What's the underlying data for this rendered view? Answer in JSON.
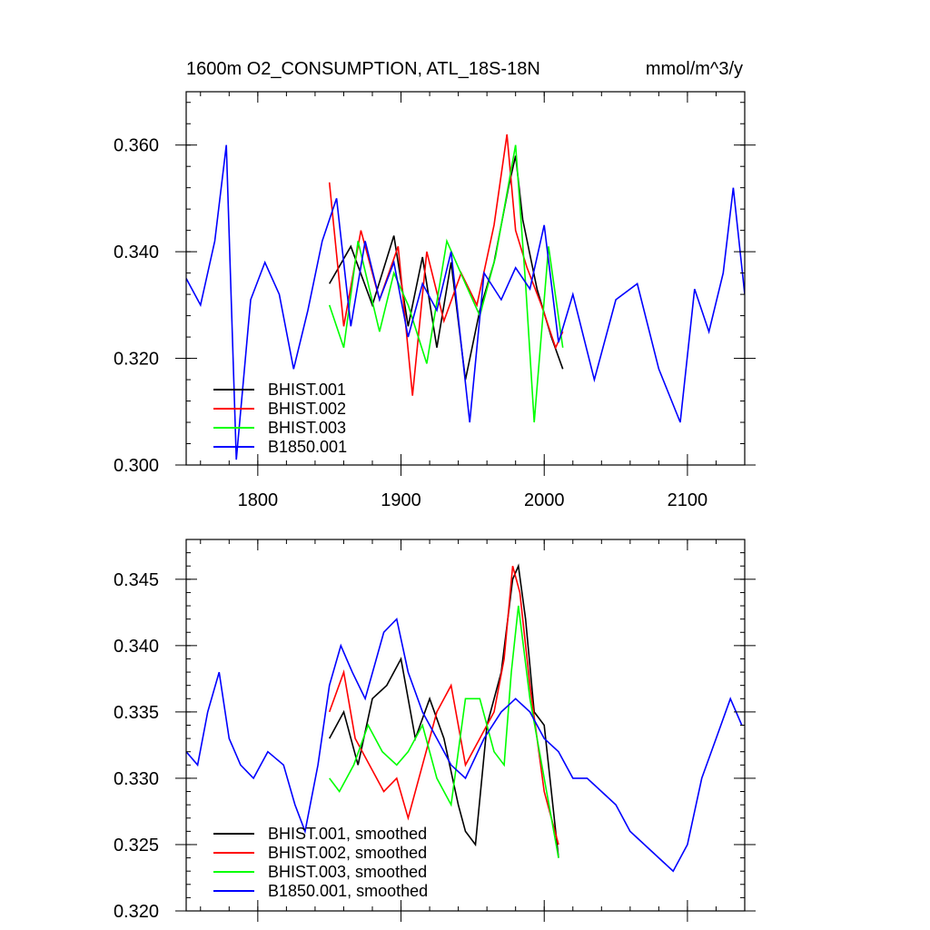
{
  "chart_data": [
    {
      "type": "line",
      "title": "1600m O2_CONSUMPTION, ATL_18S-18N",
      "units": "mmol/m^3/y",
      "xlim": [
        1750,
        2140
      ],
      "ylim": [
        0.3,
        0.37
      ],
      "x_ticks": [
        1800,
        1900,
        2000,
        2100
      ],
      "x_tick_labels": [
        "1800",
        "1900",
        "2000",
        "2100"
      ],
      "y_ticks": [
        0.3,
        0.32,
        0.34,
        0.36
      ],
      "y_tick_labels": [
        "0.300",
        "0.320",
        "0.340",
        "0.360"
      ],
      "legend_position": "bottom-left",
      "series": [
        {
          "name": "BHIST.001",
          "color": "#000000",
          "x": [
            1850,
            1865,
            1880,
            1895,
            1905,
            1915,
            1925,
            1935,
            1945,
            1955,
            1965,
            1975,
            1980,
            1985,
            1995,
            2005,
            2013
          ],
          "y": [
            0.334,
            0.341,
            0.33,
            0.343,
            0.326,
            0.339,
            0.322,
            0.338,
            0.316,
            0.329,
            0.338,
            0.352,
            0.358,
            0.346,
            0.333,
            0.324,
            0.318
          ]
        },
        {
          "name": "BHIST.002",
          "color": "#ff0000",
          "x": [
            1850,
            1860,
            1872,
            1885,
            1898,
            1908,
            1918,
            1930,
            1942,
            1953,
            1965,
            1974,
            1980,
            1988,
            1998,
            2008,
            2013
          ],
          "y": [
            0.353,
            0.326,
            0.344,
            0.331,
            0.341,
            0.313,
            0.34,
            0.327,
            0.336,
            0.33,
            0.345,
            0.362,
            0.344,
            0.337,
            0.33,
            0.322,
            0.325
          ]
        },
        {
          "name": "BHIST.003",
          "color": "#00ff00",
          "x": [
            1850,
            1860,
            1870,
            1885,
            1895,
            1905,
            1918,
            1932,
            1945,
            1955,
            1966,
            1976,
            1980,
            1987,
            1993,
            2003,
            2013
          ],
          "y": [
            0.33,
            0.322,
            0.342,
            0.325,
            0.336,
            0.33,
            0.319,
            0.342,
            0.334,
            0.328,
            0.339,
            0.354,
            0.36,
            0.334,
            0.308,
            0.341,
            0.322
          ]
        },
        {
          "name": "B1850.001",
          "color": "#0000ff",
          "x": [
            1750,
            1760,
            1770,
            1778,
            1785,
            1795,
            1805,
            1815,
            1825,
            1835,
            1845,
            1855,
            1865,
            1875,
            1885,
            1895,
            1905,
            1915,
            1925,
            1935,
            1948,
            1958,
            1970,
            1980,
            1990,
            2000,
            2010,
            2020,
            2035,
            2050,
            2065,
            2080,
            2095,
            2105,
            2115,
            2125,
            2132,
            2140
          ],
          "y": [
            0.335,
            0.33,
            0.342,
            0.36,
            0.301,
            0.331,
            0.338,
            0.332,
            0.318,
            0.329,
            0.342,
            0.35,
            0.326,
            0.342,
            0.331,
            0.338,
            0.324,
            0.334,
            0.329,
            0.34,
            0.308,
            0.336,
            0.331,
            0.337,
            0.333,
            0.345,
            0.323,
            0.332,
            0.316,
            0.331,
            0.334,
            0.318,
            0.308,
            0.333,
            0.325,
            0.336,
            0.352,
            0.332
          ]
        }
      ]
    },
    {
      "type": "line",
      "xlim": [
        1750,
        2140
      ],
      "ylim": [
        0.32,
        0.348
      ],
      "x_ticks": [
        1800,
        1900,
        2000,
        2100
      ],
      "x_tick_labels": [
        "",
        "",
        "",
        ""
      ],
      "y_ticks": [
        0.32,
        0.325,
        0.33,
        0.335,
        0.34,
        0.345
      ],
      "y_tick_labels": [
        "0.320",
        "0.325",
        "0.330",
        "0.335",
        "0.340",
        "0.345"
      ],
      "legend_position": "bottom-left",
      "series": [
        {
          "name": "BHIST.001, smoothed",
          "color": "#000000",
          "x": [
            1850,
            1860,
            1870,
            1880,
            1890,
            1900,
            1910,
            1920,
            1930,
            1940,
            1945,
            1952,
            1960,
            1970,
            1978,
            1982,
            1987,
            1993,
            2000,
            2010
          ],
          "y": [
            0.333,
            0.335,
            0.331,
            0.336,
            0.337,
            0.339,
            0.333,
            0.336,
            0.333,
            0.328,
            0.326,
            0.325,
            0.334,
            0.338,
            0.345,
            0.346,
            0.342,
            0.335,
            0.334,
            0.324
          ]
        },
        {
          "name": "BHIST.002, smoothed",
          "color": "#ff0000",
          "x": [
            1850,
            1860,
            1868,
            1878,
            1888,
            1897,
            1905,
            1915,
            1925,
            1935,
            1945,
            1955,
            1965,
            1972,
            1978,
            1983,
            1990,
            2000,
            2010
          ],
          "y": [
            0.335,
            0.338,
            0.333,
            0.331,
            0.329,
            0.33,
            0.327,
            0.331,
            0.335,
            0.337,
            0.331,
            0.333,
            0.335,
            0.339,
            0.346,
            0.344,
            0.337,
            0.329,
            0.325
          ]
        },
        {
          "name": "BHIST.003, smoothed",
          "color": "#00ff00",
          "x": [
            1850,
            1857,
            1867,
            1877,
            1887,
            1897,
            1905,
            1915,
            1925,
            1935,
            1945,
            1955,
            1965,
            1972,
            1977,
            1982,
            1990,
            2000,
            2010
          ],
          "y": [
            0.33,
            0.329,
            0.331,
            0.334,
            0.332,
            0.331,
            0.332,
            0.334,
            0.33,
            0.328,
            0.336,
            0.336,
            0.332,
            0.331,
            0.338,
            0.343,
            0.336,
            0.33,
            0.324
          ]
        },
        {
          "name": "B1850.001, smoothed",
          "color": "#0000ff",
          "x": [
            1750,
            1758,
            1765,
            1773,
            1780,
            1788,
            1797,
            1807,
            1818,
            1826,
            1833,
            1842,
            1850,
            1858,
            1866,
            1875,
            1888,
            1897,
            1905,
            1915,
            1925,
            1935,
            1945,
            1958,
            1970,
            1980,
            1990,
            2000,
            2010,
            2020,
            2030,
            2040,
            2050,
            2060,
            2070,
            2080,
            2090,
            2100,
            2110,
            2120,
            2130,
            2138
          ],
          "y": [
            0.332,
            0.331,
            0.335,
            0.338,
            0.333,
            0.331,
            0.33,
            0.332,
            0.331,
            0.328,
            0.326,
            0.331,
            0.337,
            0.34,
            0.338,
            0.336,
            0.341,
            0.342,
            0.338,
            0.335,
            0.333,
            0.331,
            0.33,
            0.333,
            0.335,
            0.336,
            0.335,
            0.333,
            0.332,
            0.33,
            0.33,
            0.329,
            0.328,
            0.326,
            0.325,
            0.324,
            0.323,
            0.325,
            0.33,
            0.333,
            0.336,
            0.334
          ]
        }
      ]
    }
  ]
}
